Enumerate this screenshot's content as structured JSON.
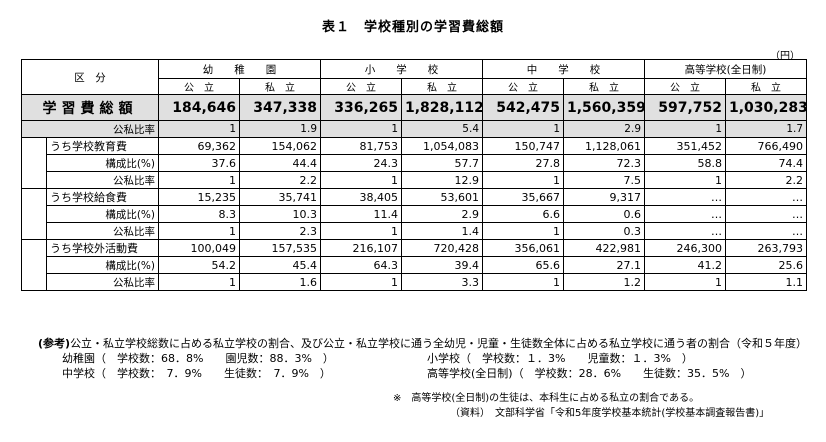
{
  "title": "表１　学校種別の学習費総額",
  "unit": "（円）",
  "header": {
    "kubun": "区　分",
    "schools": [
      "幼　　稚　　園",
      "小　　学　　校",
      "中　　学　　校",
      "高等学校(全日制)"
    ],
    "types": [
      "公　立",
      "私　立",
      "公　立",
      "私　立",
      "公　立",
      "私　立",
      "公　立",
      "私　立"
    ]
  },
  "total": {
    "label": "学習費総額",
    "values": [
      "184,646",
      "347,338",
      "336,265",
      "1,828,112",
      "542,475",
      "1,560,359",
      "597,752",
      "1,030,283"
    ],
    "ratio_label": "公私比率",
    "ratio": [
      "1",
      "1.9",
      "1",
      "5.4",
      "1",
      "2.9",
      "1",
      "1.7"
    ]
  },
  "sections": [
    {
      "label": "うち学校教育費",
      "values": [
        "69,362",
        "154,062",
        "81,753",
        "1,054,083",
        "150,747",
        "1,128,061",
        "351,452",
        "766,490"
      ],
      "comp_label": "構成比(%)",
      "comp": [
        "37.6",
        "44.4",
        "24.3",
        "57.7",
        "27.8",
        "72.3",
        "58.8",
        "74.4"
      ],
      "ratio_label": "公私比率",
      "ratio": [
        "1",
        "2.2",
        "1",
        "12.9",
        "1",
        "7.5",
        "1",
        "2.2"
      ]
    },
    {
      "label": "うち学校給食費",
      "values": [
        "15,235",
        "35,741",
        "38,405",
        "53,601",
        "35,667",
        "9,317",
        "…",
        "…"
      ],
      "comp_label": "構成比(%)",
      "comp": [
        "8.3",
        "10.3",
        "11.4",
        "2.9",
        "6.6",
        "0.6",
        "…",
        "…"
      ],
      "ratio_label": "公私比率",
      "ratio": [
        "1",
        "2.3",
        "1",
        "1.4",
        "1",
        "0.3",
        "…",
        "…"
      ]
    },
    {
      "label": "うち学校外活動費",
      "values": [
        "100,049",
        "157,535",
        "216,107",
        "720,428",
        "356,061",
        "422,981",
        "246,300",
        "263,793"
      ],
      "comp_label": "構成比(%)",
      "comp": [
        "54.2",
        "45.4",
        "64.3",
        "39.4",
        "65.6",
        "27.1",
        "41.2",
        "25.6"
      ],
      "ratio_label": "公私比率",
      "ratio": [
        "1",
        "1.6",
        "1",
        "3.3",
        "1",
        "1.2",
        "1",
        "1.1"
      ]
    }
  ],
  "notes": {
    "head_bold": "(参考)",
    "head": "公立・私立学校総数に占める私立学校の割合、及び公立・私立学校に通う全幼児・児童・生徒数全体に占める私立学校に通う者の割合（令和５年度）",
    "line1a": "幼稚園（　学校数：68．8%　　園児数：88．3%　）",
    "line1b": "小学校（　学校数：１．3%　　児童数：１．3%　）",
    "line2a": "中学校（　学校数：　7．9%　　生徒数：　7．9%　）",
    "line2b": "高等学校(全日制)（　学校数：28．6%　　生徒数：35．5%　）",
    "footnote": "※　高等学校(全日制)の生徒は、本科生に占める私立の割合である。",
    "source": "（資料）　文部科学省「令和5年度学校基本統計(学校基本調査報告書)」"
  }
}
